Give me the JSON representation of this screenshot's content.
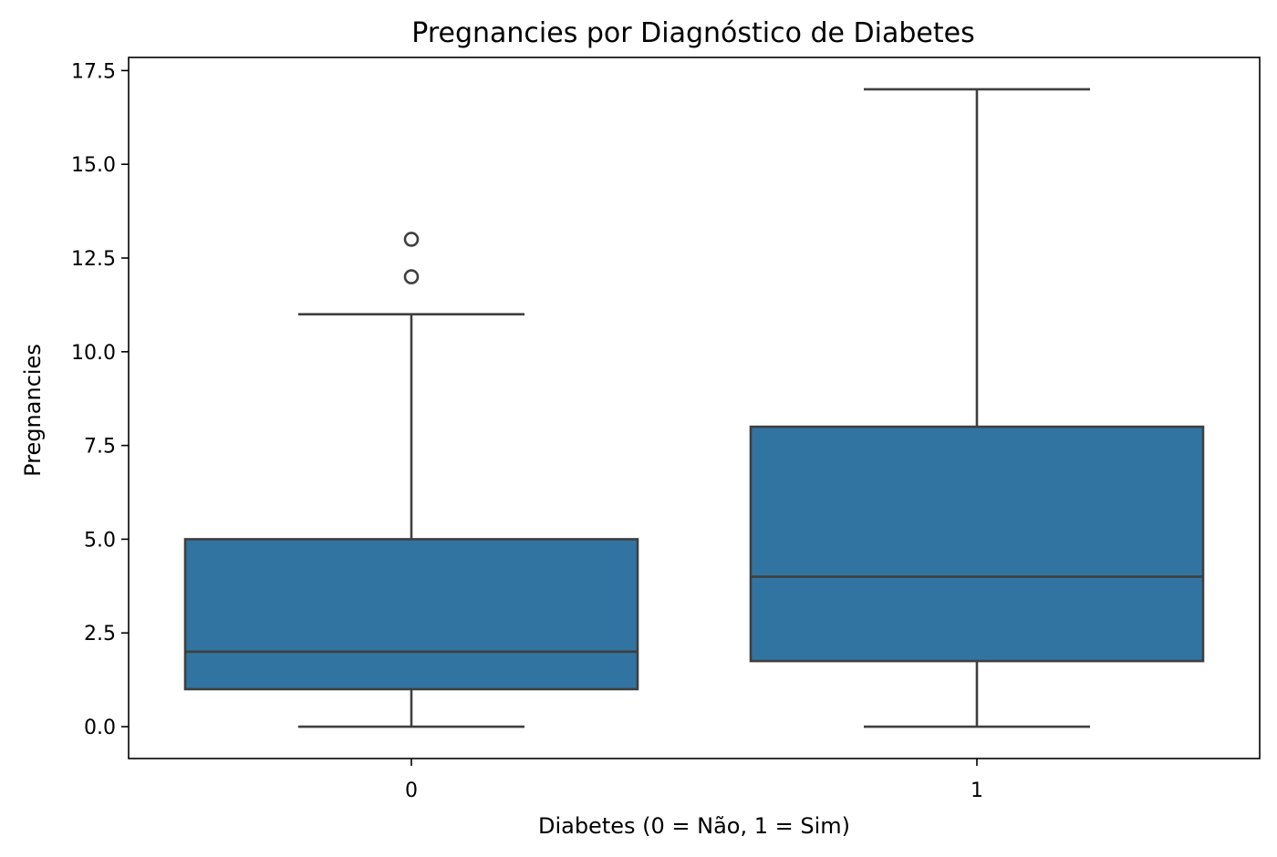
{
  "chart_data": {
    "type": "box",
    "title": "Pregnancies por Diagnóstico de Diabetes",
    "xlabel": "Diabetes (0 = Não, 1 = Sim)",
    "ylabel": "Pregnancies",
    "ylim": [
      -0.85,
      17.85
    ],
    "yticks": [
      "0.0",
      "2.5",
      "5.0",
      "7.5",
      "10.0",
      "12.5",
      "15.0",
      "17.5"
    ],
    "ytick_values": [
      0,
      2.5,
      5,
      7.5,
      10,
      12.5,
      15,
      17.5
    ],
    "grid": false,
    "categories": [
      "0",
      "1"
    ],
    "boxes": [
      {
        "category": "0",
        "whisker_low": 0,
        "q1": 1,
        "median": 2,
        "q3": 5,
        "whisker_high": 11,
        "outliers": [
          12,
          13
        ]
      },
      {
        "category": "1",
        "whisker_low": 0,
        "q1": 1.75,
        "median": 4,
        "q3": 8,
        "whisker_high": 17,
        "outliers": []
      }
    ],
    "colors": {
      "box_fill": "#3274a1",
      "line": "#3f3f3f"
    }
  }
}
